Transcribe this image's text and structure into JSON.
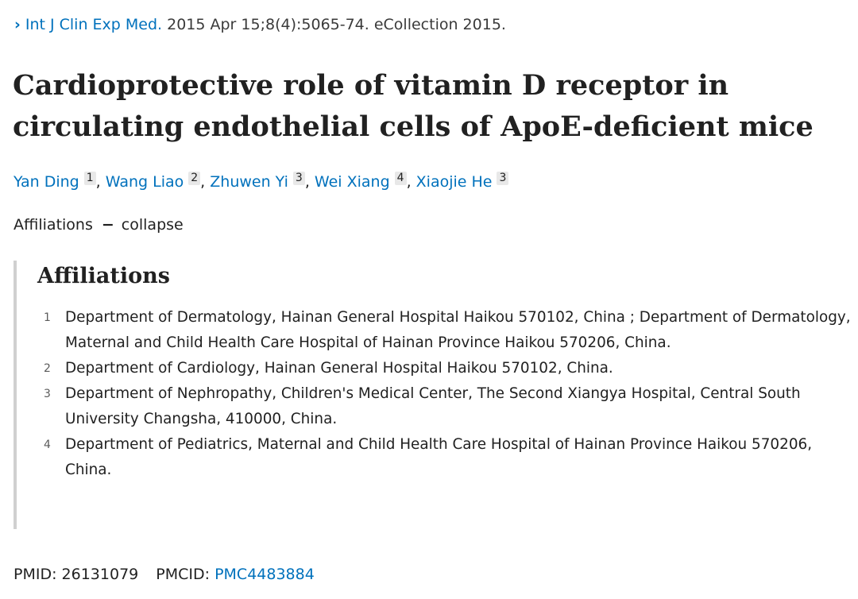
{
  "citation": {
    "chevron": "›",
    "journal": "Int J Clin Exp Med.",
    "details": " 2015 Apr 15;8(4):5065-74. eCollection 2015."
  },
  "title": "Cardioprotective role of vitamin D receptor in circulating endothelial cells of ApoE-deficient mice",
  "authors": [
    {
      "name": "Yan Ding",
      "aff": "1",
      "sep": ","
    },
    {
      "name": "Wang Liao",
      "aff": "2",
      "sep": ","
    },
    {
      "name": "Zhuwen Yi",
      "aff": "3",
      "sep": ","
    },
    {
      "name": "Wei Xiang",
      "aff": "4",
      "sep": ","
    },
    {
      "name": "Xiaojie He",
      "aff": "3",
      "sep": ""
    }
  ],
  "affiliations_toggle": {
    "label": "Affiliations",
    "dash": "−",
    "action": "collapse"
  },
  "affiliations": {
    "heading": "Affiliations",
    "items": [
      {
        "num": "1",
        "text": "Department of Dermatology, Hainan General Hospital Haikou 570102, China ; Department of Dermatology, Maternal and Child Health Care Hospital of Hainan Province Haikou 570206, China."
      },
      {
        "num": "2",
        "text": "Department of Cardiology, Hainan General Hospital Haikou 570102, China."
      },
      {
        "num": "3",
        "text": "Department of Nephropathy, Children's Medical Center, The Second Xiangya Hospital, Central South University Changsha, 410000, China."
      },
      {
        "num": "4",
        "text": "Department of Pediatrics, Maternal and Child Health Care Hospital of Hainan Province Haikou 570206, China."
      }
    ]
  },
  "identifiers": {
    "pmid_label": "PMID:",
    "pmid": "26131079",
    "pmcid_label": "PMCID:",
    "pmcid": "PMC4483884"
  }
}
